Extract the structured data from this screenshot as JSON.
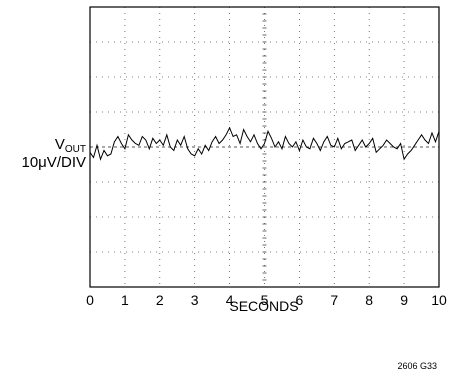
{
  "chart_data": {
    "type": "line",
    "title": "",
    "xlabel": "SECONDS",
    "ylabel": {
      "main": "V",
      "subscript": "OUT",
      "scale": "10μV/DIV"
    },
    "x_ticks": [
      "0",
      "1",
      "2",
      "3",
      "4",
      "5",
      "6",
      "7",
      "8",
      "9",
      "10"
    ],
    "xlim": [
      0,
      10
    ],
    "ylim": [
      -4,
      4
    ],
    "y_unit": "divisions (10μV/DIV)",
    "grid": "dotted, 10 x 8 divisions",
    "legend": "none",
    "series": [
      {
        "x": [
          0.0,
          0.1,
          0.2,
          0.3,
          0.4,
          0.5,
          0.6,
          0.7,
          0.8,
          0.9,
          1.0,
          1.1,
          1.2,
          1.3,
          1.4,
          1.5,
          1.6,
          1.7,
          1.8,
          1.9,
          2.0,
          2.1,
          2.2,
          2.3,
          2.4,
          2.5,
          2.6,
          2.7,
          2.8,
          2.9,
          3.0,
          3.1,
          3.2,
          3.3,
          3.4,
          3.5,
          3.6,
          3.7,
          3.8,
          3.9,
          4.0,
          4.1,
          4.2,
          4.3,
          4.4,
          4.5,
          4.6,
          4.7,
          4.8,
          4.9,
          5.0,
          5.1,
          5.2,
          5.3,
          5.4,
          5.5,
          5.6,
          5.7,
          5.8,
          5.9,
          6.0,
          6.1,
          6.2,
          6.3,
          6.4,
          6.5,
          6.6,
          6.7,
          6.8,
          6.9,
          7.0,
          7.1,
          7.2,
          7.3,
          7.4,
          7.5,
          7.6,
          7.7,
          7.8,
          7.9,
          8.0,
          8.1,
          8.2,
          8.3,
          8.4,
          8.5,
          8.6,
          8.7,
          8.8,
          8.9,
          9.0,
          9.1,
          9.2,
          9.3,
          9.4,
          9.5,
          9.6,
          9.7,
          9.8,
          9.9,
          10.0
        ],
        "y": [
          -0.15,
          -0.3,
          0.05,
          -0.35,
          -0.1,
          -0.25,
          -0.2,
          0.15,
          0.3,
          0.1,
          -0.05,
          0.35,
          0.2,
          0.1,
          0.05,
          0.3,
          0.2,
          -0.05,
          0.25,
          0.1,
          0.2,
          0.05,
          0.35,
          0.0,
          -0.1,
          0.2,
          0.05,
          0.3,
          -0.05,
          -0.2,
          -0.25,
          -0.05,
          -0.2,
          0.05,
          -0.1,
          0.15,
          0.3,
          0.1,
          0.2,
          0.35,
          0.55,
          0.3,
          0.35,
          0.1,
          0.5,
          0.3,
          0.15,
          0.35,
          0.1,
          -0.05,
          0.1,
          0.45,
          0.25,
          0.0,
          0.15,
          -0.05,
          0.3,
          0.1,
          0.0,
          0.15,
          -0.1,
          0.2,
          0.0,
          -0.05,
          0.25,
          0.1,
          -0.1,
          0.15,
          0.3,
          0.05,
          0.0,
          0.25,
          -0.05,
          0.1,
          0.15,
          0.2,
          -0.1,
          0.05,
          0.2,
          0.0,
          0.1,
          0.25,
          -0.15,
          -0.05,
          0.05,
          0.2,
          0.1,
          0.0,
          -0.05,
          0.1,
          -0.35,
          -0.2,
          -0.1,
          0.05,
          0.2,
          0.35,
          0.2,
          0.1,
          0.4,
          0.15,
          0.45
        ]
      }
    ],
    "reference_line": {
      "y": 0,
      "style": "dashed"
    },
    "footnote": "2606 G33"
  }
}
